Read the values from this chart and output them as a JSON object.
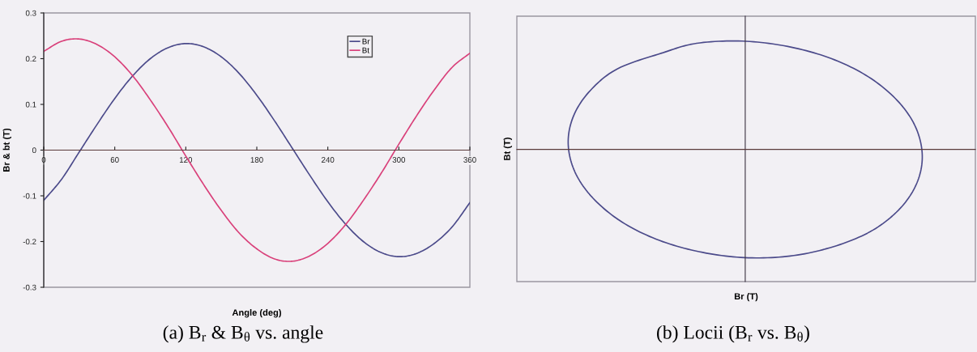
{
  "chart_data": [
    {
      "type": "line",
      "title": "(a) B$_{r}$ & B$_{θ}$ vs. angle",
      "xlabel": "Angle (deg)",
      "ylabel": "Br & bt (T)",
      "x": [
        0,
        15,
        30,
        45,
        60,
        75,
        90,
        105,
        120,
        135,
        150,
        165,
        180,
        195,
        210,
        225,
        240,
        255,
        270,
        285,
        300,
        315,
        330,
        345,
        360
      ],
      "series": [
        {
          "name": "Br",
          "color": "#4b4a8a",
          "values": [
            -0.11,
            -0.064,
            -0.004,
            0.056,
            0.113,
            0.162,
            0.2,
            0.224,
            0.233,
            0.226,
            0.204,
            0.168,
            0.12,
            0.064,
            0.004,
            -0.056,
            -0.113,
            -0.162,
            -0.2,
            -0.224,
            -0.233,
            -0.226,
            -0.204,
            -0.168,
            -0.115
          ]
        },
        {
          "name": "Bt",
          "color": "#d9407a",
          "values": [
            0.216,
            0.238,
            0.243,
            0.231,
            0.204,
            0.163,
            0.11,
            0.051,
            -0.013,
            -0.075,
            -0.132,
            -0.181,
            -0.216,
            -0.238,
            -0.243,
            -0.231,
            -0.204,
            -0.163,
            -0.11,
            -0.051,
            0.013,
            0.075,
            0.132,
            0.181,
            0.212
          ]
        }
      ],
      "xlim": [
        0,
        360
      ],
      "xticks": [
        0,
        60,
        120,
        180,
        240,
        300,
        360
      ],
      "ylim": [
        -0.3,
        0.3
      ],
      "yticks": [
        -0.3,
        -0.2,
        -0.1,
        0,
        0.1,
        0.2,
        0.3
      ],
      "legend": "top right",
      "grid": false,
      "marker": "none",
      "line_style": "solid"
    },
    {
      "type": "other",
      "title": "(b) Locii (B$_{r}$ vs. B$_{θ}$)",
      "xlabel": "Br (T)",
      "ylabel": "Bt (T)"
    }
  ]
}
